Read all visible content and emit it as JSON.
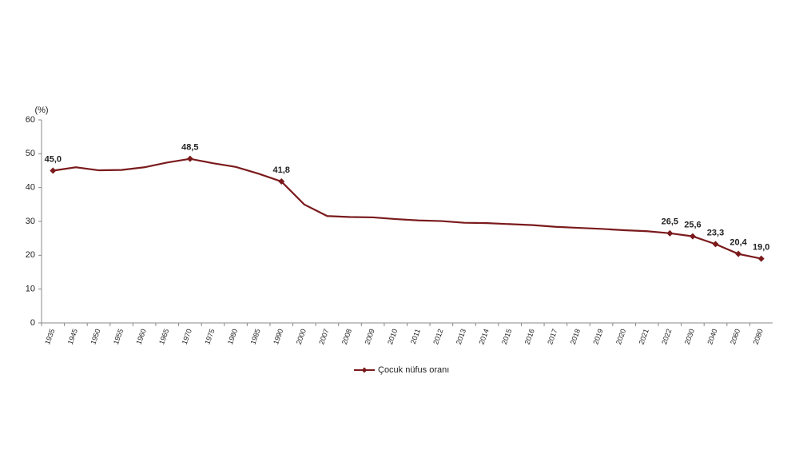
{
  "chart_data": {
    "type": "line",
    "y_label": "(%)",
    "categories": [
      "1935",
      "1945",
      "1950",
      "1955",
      "1960",
      "1965",
      "1970",
      "1975",
      "1980",
      "1985",
      "1990",
      "2000",
      "2007",
      "2008",
      "2009",
      "2010",
      "2011",
      "2012",
      "2013",
      "2014",
      "2015",
      "2016",
      "2017",
      "2018",
      "2019",
      "2020",
      "2021",
      "2022",
      "2030",
      "2040",
      "2060",
      "2080"
    ],
    "series": [
      {
        "name": "Çocuk nüfus oranı",
        "color": "#7a1a1c",
        "values": [
          45.0,
          46.0,
          45.1,
          45.2,
          46.0,
          47.4,
          48.5,
          47.2,
          46.1,
          44.1,
          41.8,
          35.0,
          31.6,
          31.3,
          31.2,
          30.7,
          30.3,
          30.1,
          29.6,
          29.5,
          29.2,
          28.9,
          28.4,
          28.1,
          27.8,
          27.4,
          27.1,
          26.5,
          25.6,
          23.3,
          20.4,
          19.0
        ],
        "value_labels": [
          "45,0",
          null,
          null,
          null,
          null,
          null,
          "48,5",
          null,
          null,
          null,
          "41,8",
          null,
          null,
          null,
          null,
          null,
          null,
          null,
          null,
          null,
          null,
          null,
          null,
          null,
          null,
          null,
          null,
          "26,5",
          "25,6",
          "23,3",
          "20,4",
          "19,0"
        ]
      }
    ],
    "ylim": [
      0,
      60
    ],
    "yticks": [
      0,
      10,
      20,
      30,
      40,
      50,
      60
    ],
    "grid": false
  }
}
